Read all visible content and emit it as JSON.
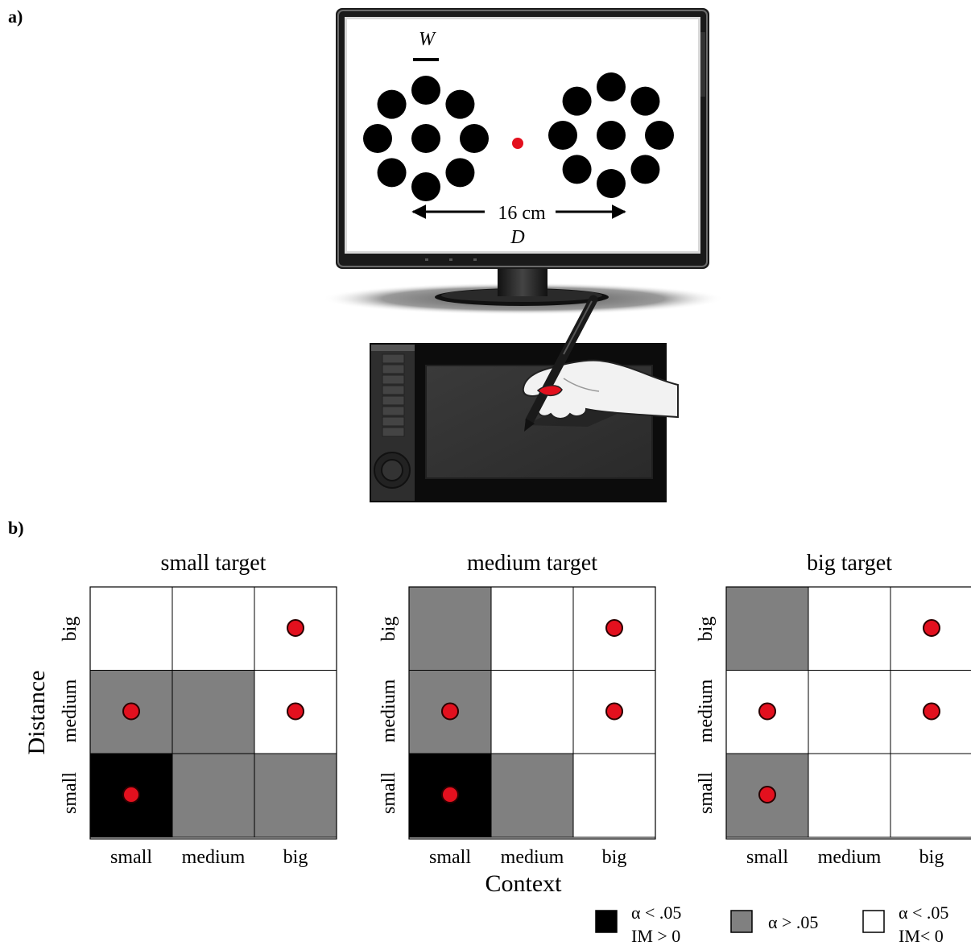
{
  "panel_a": {
    "label": "a)",
    "width_label": "W",
    "distance_value": "16 cm",
    "distance_label": "D"
  },
  "panel_b": {
    "label": "b)",
    "y_axis_title": "Distance",
    "x_axis_title": "Context",
    "row_labels": [
      "big",
      "medium",
      "small"
    ],
    "col_labels": [
      "small",
      "medium",
      "big"
    ],
    "grids": [
      {
        "title": "small target",
        "cells": [
          [
            "white",
            "white",
            "white"
          ],
          [
            "gray",
            "gray",
            "white"
          ],
          [
            "black",
            "gray",
            "gray"
          ]
        ],
        "dots": [
          [
            false,
            false,
            true
          ],
          [
            true,
            false,
            true
          ],
          [
            true,
            false,
            false
          ]
        ]
      },
      {
        "title": "medium target",
        "cells": [
          [
            "gray",
            "white",
            "white"
          ],
          [
            "gray",
            "white",
            "white"
          ],
          [
            "black",
            "gray",
            "white"
          ]
        ],
        "dots": [
          [
            false,
            false,
            true
          ],
          [
            true,
            false,
            true
          ],
          [
            true,
            false,
            false
          ]
        ]
      },
      {
        "title": "big target",
        "cells": [
          [
            "gray",
            "white",
            "white"
          ],
          [
            "white",
            "white",
            "white"
          ],
          [
            "gray",
            "white",
            "white"
          ]
        ],
        "dots": [
          [
            false,
            false,
            true
          ],
          [
            true,
            false,
            true
          ],
          [
            true,
            false,
            false
          ]
        ]
      }
    ],
    "legend": [
      {
        "swatch": "black",
        "line1": "α < .05",
        "line2": "IM > 0"
      },
      {
        "swatch": "gray",
        "line1": "α > .05",
        "line2": ""
      },
      {
        "swatch": "white",
        "line1": "α < .05",
        "line2": "IM< 0"
      }
    ]
  },
  "colors": {
    "black": "#000000",
    "gray": "#808080",
    "white": "#ffffff",
    "dot": "#e3101e",
    "target": "#000000"
  }
}
